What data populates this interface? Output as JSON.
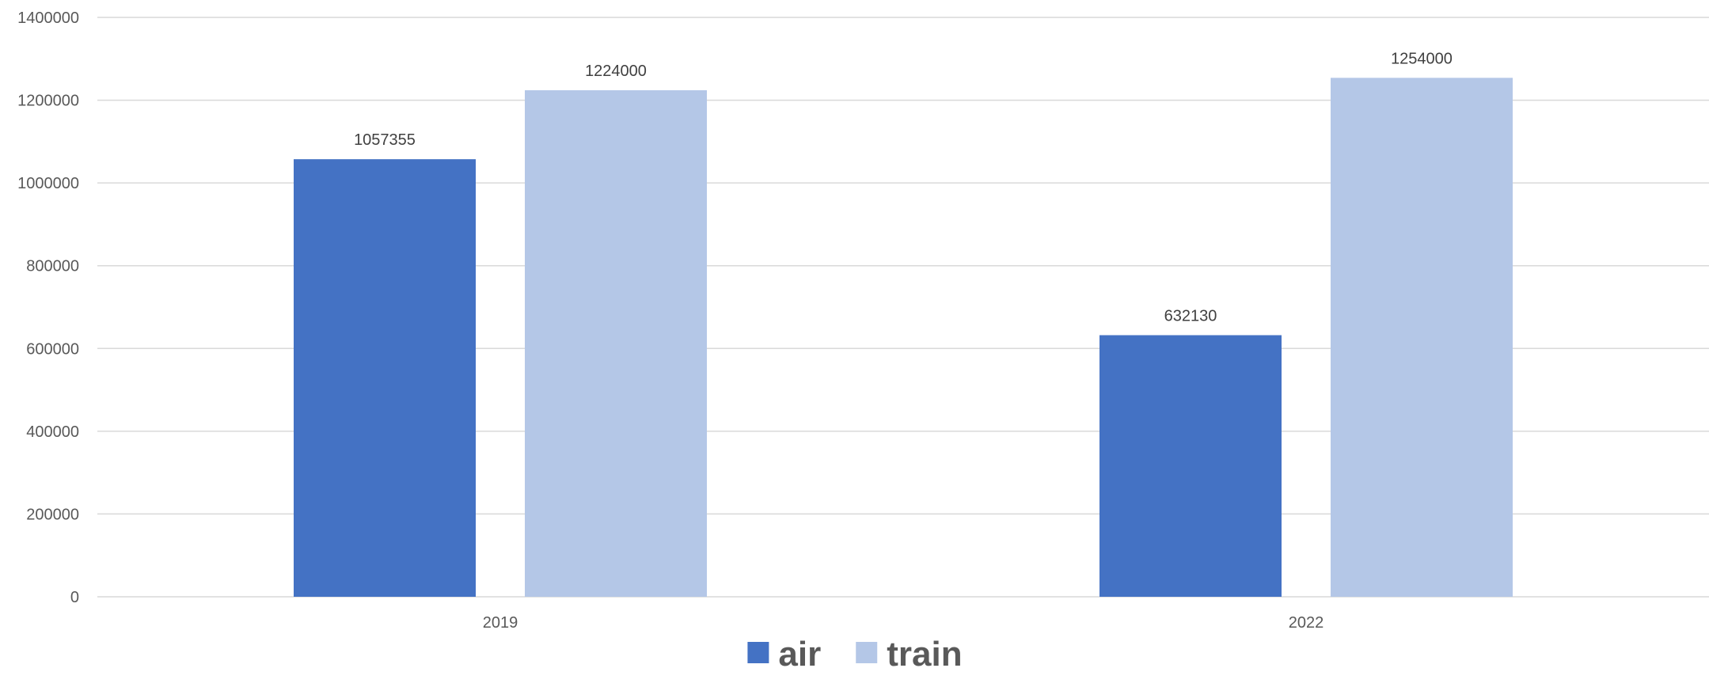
{
  "chart_data": {
    "type": "bar",
    "title": "",
    "xlabel": "",
    "ylabel": "",
    "categories": [
      "2019",
      "2022"
    ],
    "series": [
      {
        "name": "air",
        "values": [
          1057355,
          632130
        ],
        "color": "#4472C4"
      },
      {
        "name": "train",
        "values": [
          1224000,
          1254000
        ],
        "color": "#B4C7E7"
      }
    ],
    "ylim": [
      0,
      1400000
    ],
    "yticks": [
      0,
      200000,
      400000,
      600000,
      800000,
      1000000,
      1200000,
      1400000
    ],
    "grid": true,
    "legend_position": "bottom",
    "data_labels": true
  }
}
